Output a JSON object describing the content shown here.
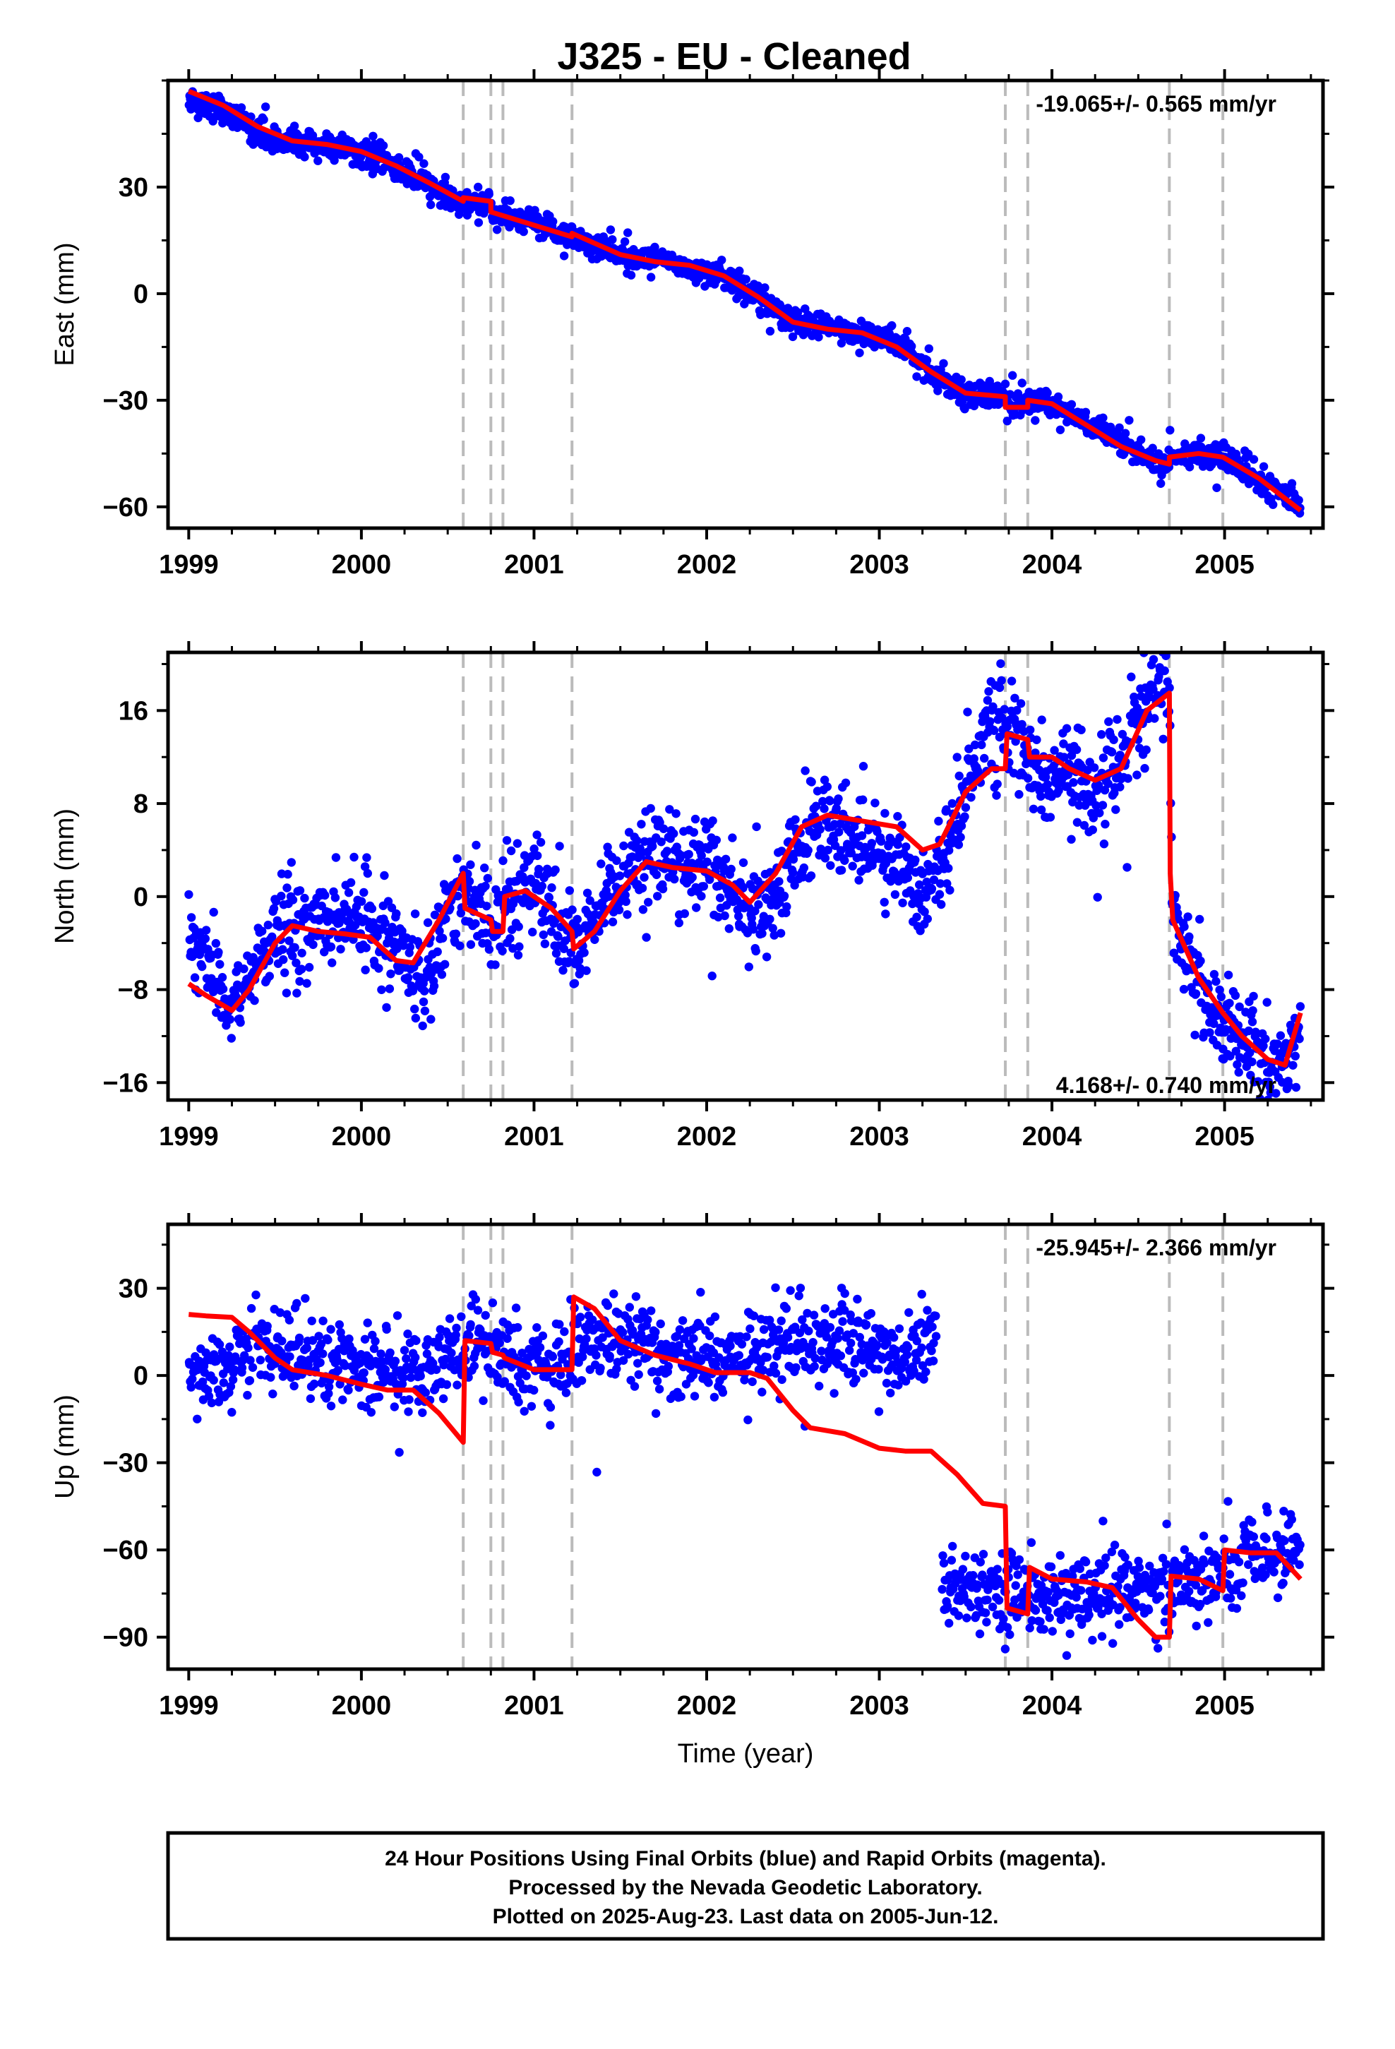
{
  "title": "J325  - EU - Cleaned",
  "footer": {
    "line1": "24 Hour Positions Using Final Orbits (blue) and Rapid Orbits (magenta).",
    "line2": "Processed by the Nevada Geodetic Laboratory.",
    "line3": "Plotted on 2025-Aug-23. Last data on 2005-Jun-12."
  },
  "colors": {
    "points": "#0000ff",
    "model": "#ff0000",
    "breaks": "#bbbbbb",
    "frame": "#000000"
  },
  "chart_data": [
    {
      "type": "scatter",
      "component": "east",
      "ylabel": "East (mm)",
      "xlabel": "",
      "xlim": [
        1998.88,
        2005.57
      ],
      "ylim": [
        -66,
        60
      ],
      "xticks": [
        "1999",
        "2000",
        "2001",
        "2002",
        "2003",
        "2004",
        "2005"
      ],
      "yticks": [
        "30",
        "0",
        "−30",
        "−60"
      ],
      "ytick_values": [
        30,
        0,
        -30,
        -60
      ],
      "rate_label": "-19.065+/- 0.565 mm/yr",
      "rate_position": "top-right",
      "breaks": [
        2000.59,
        2000.75,
        2000.82,
        2001.22,
        2003.73,
        2003.86,
        2004.68,
        2004.99
      ],
      "model": [
        [
          1999.0,
          57
        ],
        [
          1999.2,
          53
        ],
        [
          1999.4,
          47
        ],
        [
          1999.6,
          43
        ],
        [
          1999.8,
          42
        ],
        [
          2000.0,
          40
        ],
        [
          2000.2,
          36
        ],
        [
          2000.4,
          31
        ],
        [
          2000.59,
          26
        ],
        [
          2000.59,
          27
        ],
        [
          2000.75,
          26
        ],
        [
          2000.75,
          23
        ],
        [
          2001.22,
          16
        ],
        [
          2001.22,
          17
        ],
        [
          2001.5,
          11
        ],
        [
          2001.7,
          9
        ],
        [
          2001.9,
          8
        ],
        [
          2002.1,
          5
        ],
        [
          2002.3,
          -1
        ],
        [
          2002.5,
          -8
        ],
        [
          2002.7,
          -10
        ],
        [
          2002.9,
          -11
        ],
        [
          2003.1,
          -15
        ],
        [
          2003.3,
          -22
        ],
        [
          2003.5,
          -28
        ],
        [
          2003.73,
          -29
        ],
        [
          2003.73,
          -32
        ],
        [
          2003.86,
          -32
        ],
        [
          2003.86,
          -30
        ],
        [
          2004.0,
          -31
        ],
        [
          2004.2,
          -37
        ],
        [
          2004.4,
          -43
        ],
        [
          2004.6,
          -47
        ],
        [
          2004.68,
          -48
        ],
        [
          2004.68,
          -46
        ],
        [
          2004.85,
          -45
        ],
        [
          2004.99,
          -46
        ],
        [
          2005.2,
          -52
        ],
        [
          2005.44,
          -61
        ]
      ],
      "points": {
        "segments": [
          [
            1999.0,
            55
          ],
          [
            1999.2,
            52
          ],
          [
            1999.35,
            47
          ],
          [
            1999.5,
            43
          ],
          [
            1999.7,
            42
          ],
          [
            1999.9,
            41
          ],
          [
            2000.1,
            38
          ],
          [
            2000.3,
            33
          ],
          [
            2000.5,
            27
          ],
          [
            2000.59,
            25
          ],
          [
            2000.6,
            26
          ],
          [
            2000.75,
            25
          ],
          [
            2000.76,
            22
          ],
          [
            2001.0,
            20
          ],
          [
            2001.22,
            16
          ],
          [
            2001.23,
            16
          ],
          [
            2001.5,
            11
          ],
          [
            2001.75,
            9
          ],
          [
            2001.95,
            7
          ],
          [
            2002.1,
            5
          ],
          [
            2002.3,
            -1
          ],
          [
            2002.5,
            -8
          ],
          [
            2002.75,
            -10
          ],
          [
            2002.95,
            -11
          ],
          [
            2003.1,
            -14
          ],
          [
            2003.3,
            -22
          ],
          [
            2003.5,
            -28
          ],
          [
            2003.73,
            -29
          ],
          [
            2003.74,
            -32
          ],
          [
            2003.86,
            -31
          ],
          [
            2003.9,
            -30
          ],
          [
            2004.1,
            -33
          ],
          [
            2004.3,
            -40
          ],
          [
            2004.5,
            -45
          ],
          [
            2004.68,
            -48
          ],
          [
            2004.69,
            -46
          ],
          [
            2004.9,
            -45
          ],
          [
            2005.05,
            -47
          ],
          [
            2005.25,
            -54
          ],
          [
            2005.44,
            -59
          ]
        ],
        "scatter_mm": 1.8,
        "count": 1800
      }
    },
    {
      "type": "scatter",
      "component": "north",
      "ylabel": "North (mm)",
      "xlabel": "",
      "xlim": [
        1998.88,
        2005.57
      ],
      "ylim": [
        -17.5,
        21
      ],
      "xticks": [
        "1999",
        "2000",
        "2001",
        "2002",
        "2003",
        "2004",
        "2005"
      ],
      "yticks": [
        "16",
        "8",
        "0",
        "−8",
        "−16"
      ],
      "ytick_values": [
        16,
        8,
        0,
        -8,
        -16
      ],
      "rate_label": "4.168+/- 0.740 mm/yr",
      "rate_position": "bottom-right",
      "breaks": [
        2000.59,
        2000.75,
        2000.82,
        2001.22,
        2003.73,
        2003.86,
        2004.68,
        2004.99
      ],
      "model": [
        [
          1999.0,
          -7.5
        ],
        [
          1999.1,
          -8.5
        ],
        [
          1999.25,
          -9.8
        ],
        [
          1999.35,
          -8
        ],
        [
          1999.5,
          -4
        ],
        [
          1999.6,
          -2.5
        ],
        [
          1999.75,
          -3
        ],
        [
          1999.9,
          -3.2
        ],
        [
          2000.05,
          -3.5
        ],
        [
          2000.2,
          -5.5
        ],
        [
          2000.3,
          -5.7
        ],
        [
          2000.45,
          -2
        ],
        [
          2000.59,
          2
        ],
        [
          2000.6,
          -1
        ],
        [
          2000.75,
          -2
        ],
        [
          2000.76,
          -3
        ],
        [
          2000.82,
          -3
        ],
        [
          2000.83,
          0
        ],
        [
          2000.95,
          0.5
        ],
        [
          2001.1,
          -1
        ],
        [
          2001.22,
          -3
        ],
        [
          2001.23,
          -4.5
        ],
        [
          2001.35,
          -3
        ],
        [
          2001.5,
          0.5
        ],
        [
          2001.65,
          3
        ],
        [
          2001.8,
          2.5
        ],
        [
          2002.0,
          2.2
        ],
        [
          2002.15,
          1
        ],
        [
          2002.25,
          -0.5
        ],
        [
          2002.4,
          2
        ],
        [
          2002.55,
          6
        ],
        [
          2002.7,
          7
        ],
        [
          2002.9,
          6.5
        ],
        [
          2003.1,
          6
        ],
        [
          2003.25,
          4
        ],
        [
          2003.35,
          4.5
        ],
        [
          2003.5,
          9
        ],
        [
          2003.65,
          11
        ],
        [
          2003.73,
          11
        ],
        [
          2003.74,
          14
        ],
        [
          2003.86,
          13.5
        ],
        [
          2003.87,
          12
        ],
        [
          2004.0,
          12
        ],
        [
          2004.1,
          11
        ],
        [
          2004.25,
          10
        ],
        [
          2004.4,
          11
        ],
        [
          2004.55,
          16
        ],
        [
          2004.68,
          17.5
        ],
        [
          2004.685,
          2
        ],
        [
          2004.7,
          -2
        ],
        [
          2004.85,
          -7
        ],
        [
          2004.99,
          -10
        ],
        [
          2005.1,
          -12
        ],
        [
          2005.25,
          -14
        ],
        [
          2005.35,
          -14.5
        ],
        [
          2005.44,
          -10
        ]
      ],
      "points": {
        "segments": [
          [
            1999.0,
            -4
          ],
          [
            1999.1,
            -5
          ],
          [
            1999.25,
            -10
          ],
          [
            1999.35,
            -7
          ],
          [
            1999.5,
            -3
          ],
          [
            1999.65,
            -3
          ],
          [
            1999.85,
            -1.5
          ],
          [
            2000.0,
            -2
          ],
          [
            2000.2,
            -5
          ],
          [
            2000.35,
            -7
          ],
          [
            2000.5,
            -1
          ],
          [
            2000.59,
            1
          ],
          [
            2000.65,
            -1
          ],
          [
            2000.75,
            -2
          ],
          [
            2000.85,
            0
          ],
          [
            2001.0,
            2
          ],
          [
            2001.15,
            -3
          ],
          [
            2001.25,
            -5
          ],
          [
            2001.4,
            -1
          ],
          [
            2001.55,
            2
          ],
          [
            2001.7,
            3
          ],
          [
            2001.9,
            3
          ],
          [
            2002.0,
            4
          ],
          [
            2002.2,
            -1
          ],
          [
            2002.35,
            -2
          ],
          [
            2002.5,
            4
          ],
          [
            2002.65,
            6
          ],
          [
            2002.85,
            5
          ],
          [
            2003.05,
            4
          ],
          [
            2003.2,
            1
          ],
          [
            2003.35,
            2
          ],
          [
            2003.5,
            10
          ],
          [
            2003.6,
            14
          ],
          [
            2003.73,
            14
          ],
          [
            2003.8,
            13
          ],
          [
            2003.9,
            11
          ],
          [
            2004.05,
            10
          ],
          [
            2004.2,
            9
          ],
          [
            2004.35,
            11
          ],
          [
            2004.5,
            15
          ],
          [
            2004.6,
            18
          ],
          [
            2004.68,
            19
          ],
          [
            2004.7,
            -2
          ],
          [
            2004.8,
            -6
          ],
          [
            2004.95,
            -10
          ],
          [
            2005.1,
            -12.5
          ],
          [
            2005.25,
            -14
          ],
          [
            2005.35,
            -14
          ],
          [
            2005.44,
            -11
          ]
        ],
        "scatter_mm": 2.0,
        "count": 1700
      }
    },
    {
      "type": "scatter",
      "component": "up",
      "ylabel": "Up (mm)",
      "xlabel": "Time (year)",
      "xlim": [
        1998.88,
        2005.57
      ],
      "ylim": [
        -101,
        52
      ],
      "xticks": [
        "1999",
        "2000",
        "2001",
        "2002",
        "2003",
        "2004",
        "2005"
      ],
      "yticks": [
        "30",
        "0",
        "−30",
        "−60",
        "−90"
      ],
      "ytick_values": [
        30,
        0,
        -30,
        -60,
        -90
      ],
      "rate_label": "-25.945+/- 2.366 mm/yr",
      "rate_position": "top-right",
      "breaks": [
        2000.59,
        2000.75,
        2000.82,
        2001.22,
        2003.73,
        2003.86,
        2004.68,
        2004.99
      ],
      "model": [
        [
          1999.0,
          21
        ],
        [
          1999.1,
          20.5
        ],
        [
          1999.25,
          20
        ],
        [
          1999.35,
          15
        ],
        [
          1999.5,
          6
        ],
        [
          1999.6,
          2
        ],
        [
          1999.8,
          0
        ],
        [
          2000.0,
          -3
        ],
        [
          2000.15,
          -5
        ],
        [
          2000.3,
          -5
        ],
        [
          2000.45,
          -13
        ],
        [
          2000.59,
          -23
        ],
        [
          2000.6,
          12
        ],
        [
          2000.75,
          11
        ],
        [
          2000.76,
          8
        ],
        [
          2000.82,
          7
        ],
        [
          2000.83,
          6
        ],
        [
          2001.0,
          2
        ],
        [
          2001.22,
          2
        ],
        [
          2001.23,
          27
        ],
        [
          2001.35,
          23
        ],
        [
          2001.5,
          12
        ],
        [
          2001.7,
          7
        ],
        [
          2001.9,
          4
        ],
        [
          2002.05,
          1
        ],
        [
          2002.25,
          1
        ],
        [
          2002.35,
          -1
        ],
        [
          2002.5,
          -12
        ],
        [
          2002.6,
          -18
        ],
        [
          2002.8,
          -20
        ],
        [
          2003.0,
          -25
        ],
        [
          2003.15,
          -26
        ],
        [
          2003.3,
          -26
        ],
        [
          2003.45,
          -34
        ],
        [
          2003.6,
          -44
        ],
        [
          2003.73,
          -45
        ],
        [
          2003.74,
          -80
        ],
        [
          2003.86,
          -82
        ],
        [
          2003.87,
          -66
        ],
        [
          2004.0,
          -70
        ],
        [
          2004.2,
          -71
        ],
        [
          2004.35,
          -73
        ],
        [
          2004.5,
          -84
        ],
        [
          2004.6,
          -90
        ],
        [
          2004.68,
          -90
        ],
        [
          2004.69,
          -69
        ],
        [
          2004.85,
          -70
        ],
        [
          2004.99,
          -74
        ],
        [
          2005.0,
          -60
        ],
        [
          2005.15,
          -61
        ],
        [
          2005.3,
          -61
        ],
        [
          2005.44,
          -70
        ]
      ],
      "points": {
        "segments": [
          [
            1999.0,
            0
          ],
          [
            1999.15,
            0
          ],
          [
            1999.3,
            8
          ],
          [
            1999.45,
            12
          ],
          [
            1999.6,
            8
          ],
          [
            1999.8,
            5
          ],
          [
            2000.0,
            3
          ],
          [
            2000.2,
            0
          ],
          [
            2000.4,
            3
          ],
          [
            2000.59,
            8
          ],
          [
            2000.7,
            10
          ],
          [
            2000.85,
            7
          ],
          [
            2001.0,
            2
          ],
          [
            2001.15,
            4
          ],
          [
            2001.3,
            12
          ],
          [
            2001.5,
            12
          ],
          [
            2001.7,
            8
          ],
          [
            2001.9,
            7
          ],
          [
            2002.1,
            6
          ],
          [
            2002.3,
            8
          ],
          [
            2002.5,
            12
          ],
          [
            2002.7,
            13
          ],
          [
            2002.9,
            10
          ],
          [
            2003.1,
            8
          ],
          [
            2003.35,
            12
          ],
          [
            2003.36,
            -75
          ],
          [
            2003.55,
            -72
          ],
          [
            2003.73,
            -73
          ],
          [
            2003.9,
            -77
          ],
          [
            2004.1,
            -76
          ],
          [
            2004.3,
            -75
          ],
          [
            2004.5,
            -73
          ],
          [
            2004.68,
            -73
          ],
          [
            2004.8,
            -70
          ],
          [
            2004.99,
            -70
          ],
          [
            2005.1,
            -64
          ],
          [
            2005.3,
            -61
          ],
          [
            2005.44,
            -57
          ]
        ],
        "scatter_mm": 7.0,
        "count": 1500
      }
    }
  ]
}
